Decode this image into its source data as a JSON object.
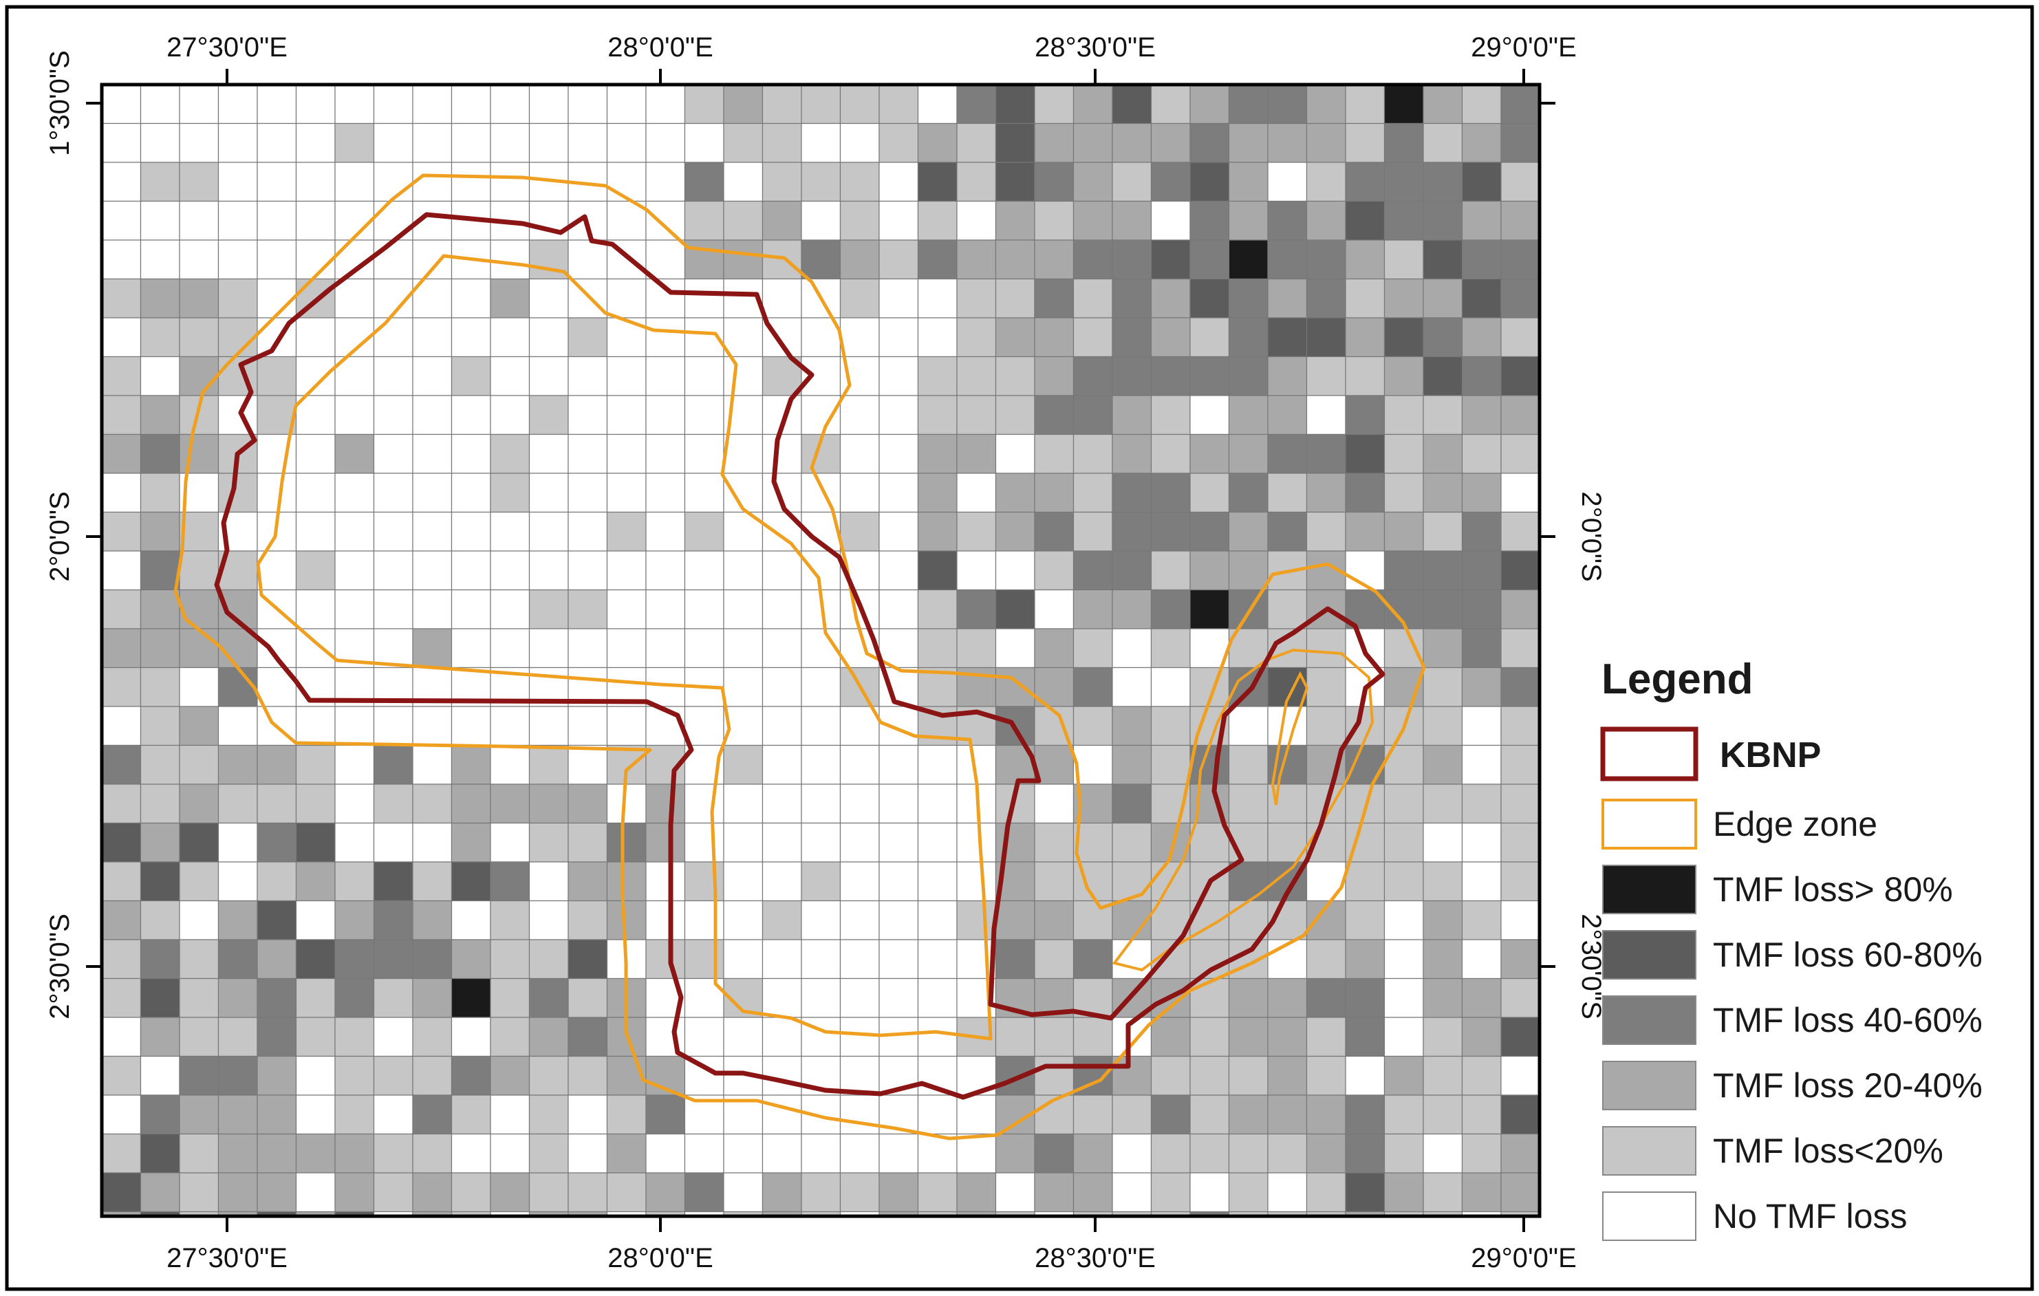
{
  "map": {
    "top_axis": [
      "27°30'0\"E",
      "28°0'0\"E",
      "28°30'0\"E",
      "29°0'0\"E"
    ],
    "bottom_axis": [
      "27°30'0\"E",
      "28°0'0\"E",
      "28°30'0\"E",
      "29°0'0\"E"
    ],
    "left_axis": [
      "1°30'0\"S",
      "2°0'0\"S",
      "2°30'0\"S"
    ],
    "right_axis": [
      "2°0'0\"S",
      "2°30'0\"S"
    ]
  },
  "legend": {
    "title": "Legend",
    "items": [
      {
        "label": "KBNP",
        "kind": "outline",
        "color": "#8b1414"
      },
      {
        "label": "Edge zone",
        "kind": "outline",
        "color": "#f0a020"
      },
      {
        "label": "TMF loss> 80%",
        "kind": "fill",
        "color": "#1a1a1a"
      },
      {
        "label": "TMF loss 60-80%",
        "kind": "fill",
        "color": "#5c5c5c"
      },
      {
        "label": "TMF loss 40-60%",
        "kind": "fill",
        "color": "#7d7d7d"
      },
      {
        "label": "TMF loss 20-40%",
        "kind": "fill",
        "color": "#a9a9a9"
      },
      {
        "label": "TMF loss<20%",
        "kind": "fill",
        "color": "#c6c6c6"
      },
      {
        "label": "No TMF loss",
        "kind": "fill",
        "color": "#ffffff"
      }
    ]
  },
  "colors": {
    "kbnp_boundary": "#8b1414",
    "edge_zone": "#f0a020",
    "grid_line": "#777777",
    "frame": "#000000"
  }
}
